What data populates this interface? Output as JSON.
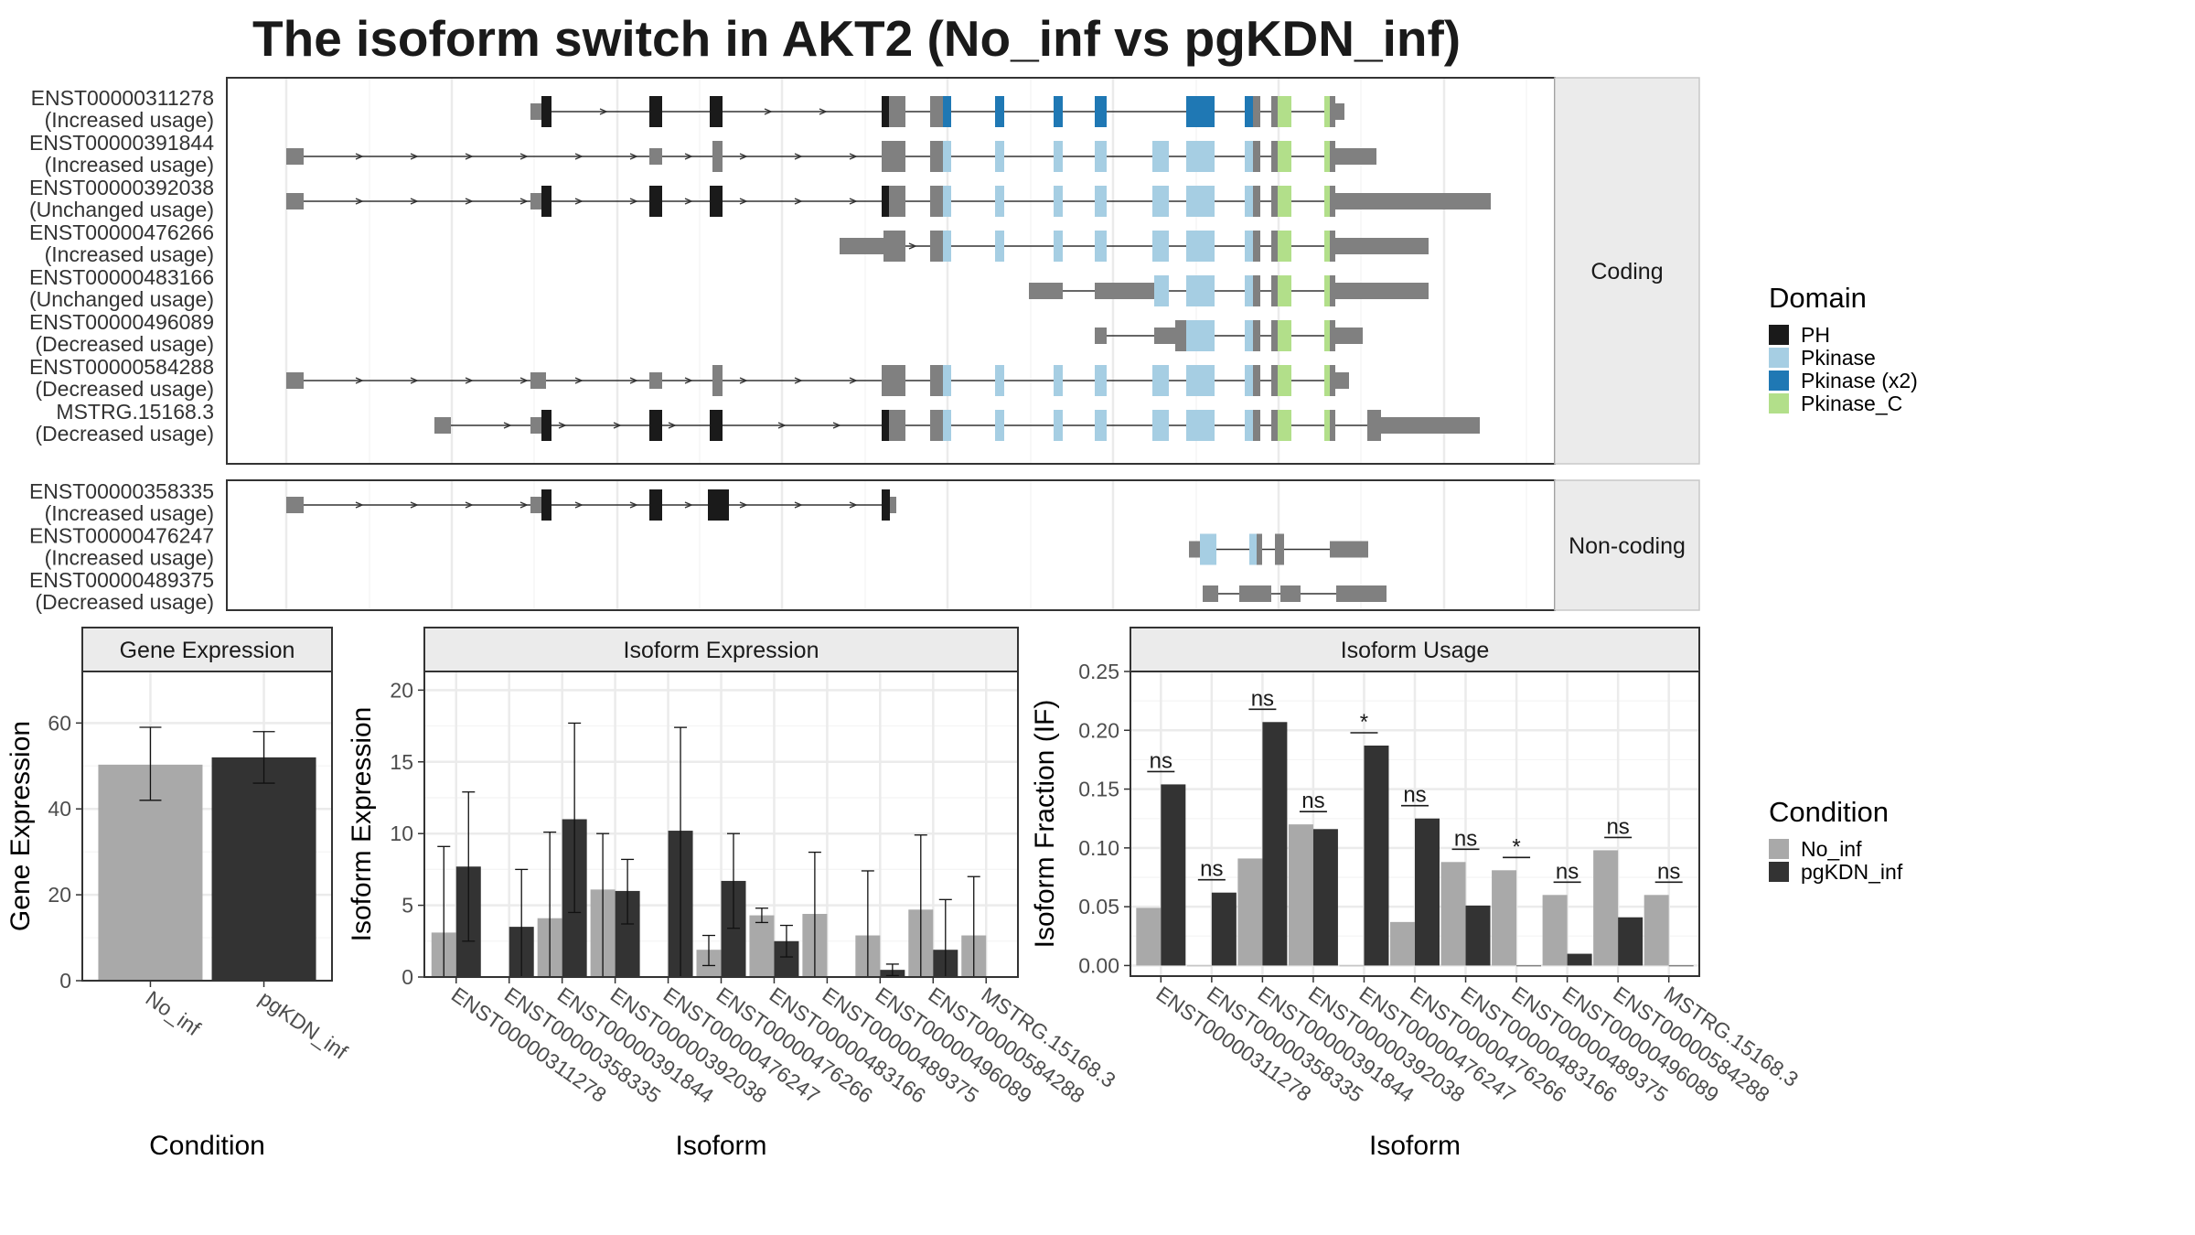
{
  "title": "The isoform switch in AKT2 (No_inf vs pgKDN_inf)",
  "colors": {
    "PH": "#1a1a1a",
    "Pkinase": "#a6cee3",
    "Pkinase (x2)": "#1f78b4",
    "Pkinase_C": "#b2df8a",
    "no_domain": "#808080",
    "No_inf": "#a9a9a9",
    "pgKDN_inf": "#333333"
  },
  "transcript_panels": [
    {
      "strip": "Coding",
      "transcripts": [
        {
          "id": "ENST00000311278",
          "usage": "(Increased usage)"
        },
        {
          "id": "ENST00000391844",
          "usage": "(Increased usage)"
        },
        {
          "id": "ENST00000392038",
          "usage": "(Unchanged usage)"
        },
        {
          "id": "ENST00000476266",
          "usage": "(Increased usage)"
        },
        {
          "id": "ENST00000483166",
          "usage": "(Unchanged usage)"
        },
        {
          "id": "ENST00000496089",
          "usage": "(Decreased usage)"
        },
        {
          "id": "ENST00000584288",
          "usage": "(Decreased usage)"
        },
        {
          "id": "MSTRG.15168.3",
          "usage": "(Decreased usage)"
        }
      ]
    },
    {
      "strip": "Non-coding",
      "transcripts": [
        {
          "id": "ENST00000358335",
          "usage": "(Increased usage)"
        },
        {
          "id": "ENST00000476247",
          "usage": "(Increased usage)"
        },
        {
          "id": "ENST00000489375",
          "usage": "(Decreased usage)"
        }
      ]
    }
  ],
  "domain_legend": {
    "title": "Domain",
    "items": [
      {
        "label": "PH",
        "color": "#1a1a1a"
      },
      {
        "label": "Pkinase",
        "color": "#a6cee3"
      },
      {
        "label": "Pkinase (x2)",
        "color": "#1f78b4"
      },
      {
        "label": "Pkinase_C",
        "color": "#b2df8a"
      }
    ]
  },
  "condition_legend": {
    "title": "Condition",
    "items": [
      {
        "label": "No_inf",
        "color": "#a9a9a9"
      },
      {
        "label": "pgKDN_inf",
        "color": "#333333"
      }
    ]
  },
  "chart_data": [
    {
      "type": "bar",
      "title": "Gene Expression",
      "xlabel": "Condition",
      "ylabel": "Gene Expression",
      "categories": [
        "No_inf",
        "pgKDN_inf"
      ],
      "values": [
        50.3,
        52.0
      ],
      "error_low": [
        42.0,
        46.0
      ],
      "error_high": [
        59.0,
        58.0
      ],
      "ylim": [
        0,
        72
      ],
      "yticks": [
        0,
        20,
        40,
        60
      ],
      "grid": true
    },
    {
      "type": "bar",
      "title": "Isoform Expression",
      "xlabel": "Isoform",
      "ylabel": "Isoform Expression",
      "categories": [
        "ENST00000311278",
        "ENST00000358335",
        "ENST00000391844",
        "ENST00000392038",
        "ENST00000476247",
        "ENST00000476266",
        "ENST00000483166",
        "ENST00000489375",
        "ENST00000496089",
        "ENST00000584288",
        "MSTRG.15168.3"
      ],
      "series": [
        {
          "name": "No_inf",
          "values": [
            3.1,
            0.0,
            4.1,
            6.1,
            0.0,
            1.9,
            4.3,
            4.4,
            2.9,
            4.7,
            2.9
          ],
          "error_low": [
            0,
            0,
            0,
            0,
            0,
            0.8,
            3.8,
            0,
            0,
            0,
            0
          ],
          "error_high": [
            9.1,
            0,
            10.1,
            10.0,
            0,
            2.9,
            4.8,
            8.7,
            7.4,
            9.9,
            7.0
          ]
        },
        {
          "name": "pgKDN_inf",
          "values": [
            7.7,
            3.5,
            11.0,
            6.0,
            10.2,
            6.7,
            2.5,
            0.0,
            0.5,
            1.9,
            0.0
          ],
          "error_low": [
            2.5,
            0,
            4.5,
            3.7,
            0,
            3.4,
            1.4,
            0,
            0.1,
            0,
            0
          ],
          "error_high": [
            12.9,
            7.5,
            17.7,
            8.2,
            17.4,
            10.0,
            3.6,
            0,
            0.9,
            5.4,
            0
          ]
        }
      ],
      "ylim": [
        0,
        21.3
      ],
      "yticks": [
        0,
        5,
        10,
        15,
        20
      ],
      "grid": true
    },
    {
      "type": "bar",
      "title": "Isoform Usage",
      "xlabel": "Isoform",
      "ylabel": "Isoform Fraction (IF)",
      "categories": [
        "ENST00000311278",
        "ENST00000358335",
        "ENST00000391844",
        "ENST00000392038",
        "ENST00000476247",
        "ENST00000476266",
        "ENST00000483166",
        "ENST00000489375",
        "ENST00000496089",
        "ENST00000584288",
        "MSTRG.15168.3"
      ],
      "series": [
        {
          "name": "No_inf",
          "values": [
            0.049,
            0.0,
            0.091,
            0.12,
            0.0,
            0.037,
            0.088,
            0.081,
            0.06,
            0.098,
            0.06
          ]
        },
        {
          "name": "pgKDN_inf",
          "values": [
            0.154,
            0.062,
            0.207,
            0.116,
            0.187,
            0.125,
            0.051,
            0.0,
            0.01,
            0.041,
            0.0
          ]
        }
      ],
      "significance": [
        "ns",
        "ns",
        "ns",
        "ns",
        "*",
        "ns",
        "ns",
        "*",
        "ns",
        "ns",
        "ns"
      ],
      "ylim": [
        -0.009,
        0.25
      ],
      "yticks": [
        0.0,
        0.05,
        0.1,
        0.15,
        0.2,
        0.25
      ],
      "ytick_labels": [
        "0.00",
        "0.05",
        "0.10",
        "0.15",
        "0.20",
        "0.25"
      ],
      "grid": true
    }
  ]
}
